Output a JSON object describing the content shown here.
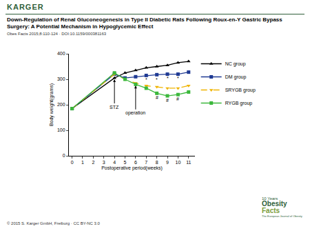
{
  "header": {
    "brand": "KARGER",
    "title": "Down-Regulation of Renal Gluconeogenesis in Type II Diabetic Rats Following Roux-en-Y Gastric Bypass Surgery: A Potential Mechanism in Hypoglycemic Effect",
    "citation": "Obes Facts 2015;8:110-124 · DOI:10.1159/000381163"
  },
  "footer": {
    "copyright": "© 2015 S. Karger GmbH, Freiburg · CC BY-NC 3.0",
    "logo": [
      "10 Years",
      "Obesity",
      "Facts",
      "The European Journal of Obesity"
    ]
  },
  "chart_data": {
    "type": "line",
    "x_label": "Postoperative period(weeks)",
    "y_label": "Body weight(grams)",
    "x": [
      0,
      4,
      5,
      6,
      7,
      8,
      9,
      10,
      11
    ],
    "series": [
      {
        "name": "NC group",
        "color": "#000000",
        "marker": "triangle-up",
        "line_style": "solid",
        "values": [
          185,
          305,
          325,
          335,
          345,
          350,
          355,
          365,
          370
        ]
      },
      {
        "name": "DM group",
        "color": "#1f3a93",
        "marker": "square",
        "line_style": "solid",
        "values": [
          185,
          320,
          305,
          310,
          315,
          318,
          320,
          320,
          328
        ]
      },
      {
        "name": "SRYGB group",
        "color": "#f0b400",
        "marker": "triangle-down",
        "line_style": "dash",
        "values": [
          185,
          320,
          300,
          285,
          275,
          270,
          265,
          265,
          275
        ]
      },
      {
        "name": "RYGB group",
        "color": "#3cb83c",
        "marker": "square",
        "line_style": "solid",
        "values": [
          185,
          325,
          300,
          280,
          265,
          245,
          235,
          240,
          250
        ]
      }
    ],
    "xlim": [
      -0.3,
      11.6
    ],
    "xticks": [
      0,
      1,
      2,
      3,
      4,
      5,
      6,
      7,
      8,
      9,
      10,
      11
    ],
    "ylim": [
      0,
      400
    ],
    "yticks": [
      0,
      100,
      200,
      300,
      400
    ],
    "legend": "right",
    "grid": false,
    "annotations": [
      {
        "text": "STZ",
        "x": 4,
        "y": 300
      },
      {
        "text": "operation",
        "x": 6,
        "y": 275
      }
    ],
    "significance": [
      {
        "text": "*",
        "x": 7,
        "y": 300
      },
      {
        "text": "*",
        "x": 8,
        "y": 300
      },
      {
        "text": "*",
        "x": 9,
        "y": 305
      },
      {
        "text": "*",
        "x": 10,
        "y": 305
      },
      {
        "text": "#",
        "x": 8,
        "y": 228
      },
      {
        "text": "#",
        "x": 9,
        "y": 218
      },
      {
        "text": "#",
        "x": 10,
        "y": 222
      }
    ]
  }
}
